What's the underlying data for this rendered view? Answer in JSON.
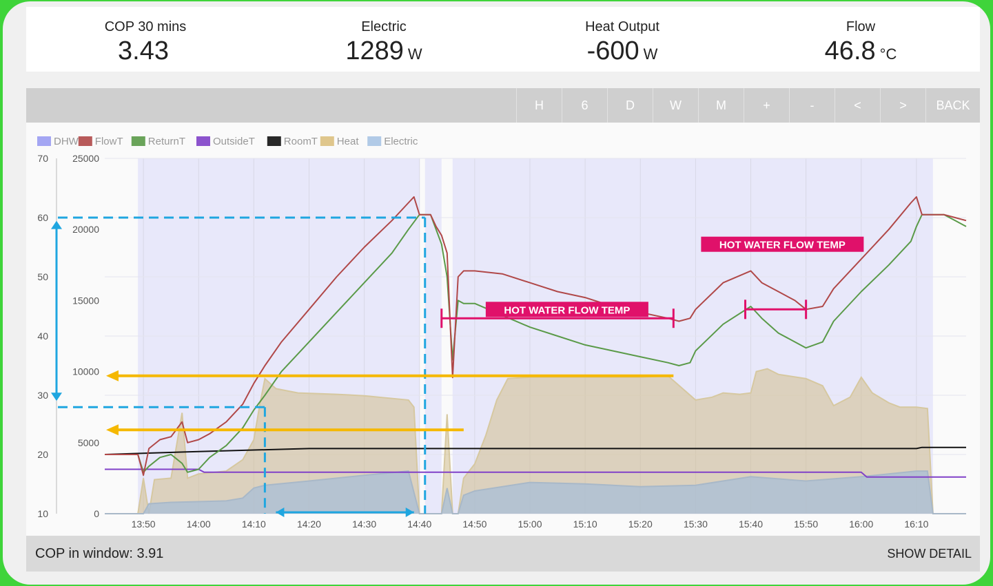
{
  "stats": [
    {
      "label": "COP 30 mins",
      "value": "3.43",
      "unit": ""
    },
    {
      "label": "Electric",
      "value": "1289",
      "unit": "W"
    },
    {
      "label": "Heat Output",
      "value": "-600",
      "unit": "W"
    },
    {
      "label": "Flow",
      "value": "46.8",
      "unit": "°C"
    }
  ],
  "toolbar": {
    "buttons": [
      "H",
      "6",
      "D",
      "W",
      "M",
      "+",
      "-",
      "<",
      ">"
    ],
    "back_label": "BACK"
  },
  "footer": {
    "cop_window": "COP in window: 3.91",
    "show_detail": "SHOW DETAIL"
  },
  "colors": {
    "DHW": "#9a9cf2",
    "FlowT": "#b04848",
    "ReturnT": "#5a9a48",
    "OutsideT": "#8040c8",
    "RoomT": "#111111",
    "Heat": "#dcc080",
    "Electric": "#a8c4e4",
    "annotation": "#e0116a",
    "guide_blue": "#1fa6e0",
    "guide_orange": "#f5b800"
  },
  "chart_data": {
    "type": "line",
    "x_ticks": [
      "13:50",
      "14:00",
      "14:10",
      "14:20",
      "14:30",
      "14:40",
      "14:50",
      "15:00",
      "15:10",
      "15:20",
      "15:30",
      "15:40",
      "15:50",
      "16:00",
      "16:10"
    ],
    "xlim": [
      "13:43",
      "16:19"
    ],
    "y_left": {
      "ylim": [
        10,
        70
      ],
      "ticks": [
        10,
        20,
        30,
        40,
        50,
        60,
        70
      ]
    },
    "y_right": {
      "ylim": [
        0,
        25000
      ],
      "ticks": [
        0,
        5000,
        10000,
        15000,
        20000,
        25000
      ]
    },
    "legend": [
      "DHW",
      "FlowT",
      "ReturnT",
      "OutsideT",
      "RoomT",
      "Heat",
      "Electric"
    ],
    "legend_position": "top-left",
    "dhw_periods": [
      [
        "13:49",
        "14:40"
      ],
      [
        "14:41",
        "14:44"
      ],
      [
        "14:46",
        "16:13"
      ]
    ],
    "series": [
      {
        "name": "FlowT",
        "axis": "left",
        "points": [
          [
            "13:43",
            20.0
          ],
          [
            "13:49",
            20.0
          ],
          [
            "13:50",
            16.5
          ],
          [
            "13:51",
            21.0
          ],
          [
            "13:53",
            22.5
          ],
          [
            "13:55",
            23.0
          ],
          [
            "13:57",
            25.5
          ],
          [
            "13:58",
            22.0
          ],
          [
            "14:00",
            22.5
          ],
          [
            "14:02",
            23.5
          ],
          [
            "14:05",
            25.5
          ],
          [
            "14:08",
            28.5
          ],
          [
            "14:10",
            32.0
          ],
          [
            "14:12",
            35.0
          ],
          [
            "14:15",
            39.0
          ],
          [
            "14:20",
            44.5
          ],
          [
            "14:25",
            50.0
          ],
          [
            "14:30",
            55.0
          ],
          [
            "14:35",
            59.5
          ],
          [
            "14:38",
            62.5
          ],
          [
            "14:39",
            63.5
          ],
          [
            "14:40",
            60.5
          ],
          [
            "14:42",
            60.5
          ],
          [
            "14:43",
            58.5
          ],
          [
            "14:44",
            57.0
          ],
          [
            "14:45",
            54.0
          ],
          [
            "14:46",
            33.0
          ],
          [
            "14:47",
            50.0
          ],
          [
            "14:48",
            51.0
          ],
          [
            "14:50",
            51.0
          ],
          [
            "14:55",
            50.5
          ],
          [
            "15:00",
            49.0
          ],
          [
            "15:05",
            47.5
          ],
          [
            "15:10",
            46.5
          ],
          [
            "15:15",
            45.0
          ],
          [
            "15:20",
            44.0
          ],
          [
            "15:25",
            43.0
          ],
          [
            "15:27",
            42.5
          ],
          [
            "15:29",
            43.0
          ],
          [
            "15:30",
            44.5
          ],
          [
            "15:35",
            49.0
          ],
          [
            "15:40",
            51.0
          ],
          [
            "15:42",
            49.0
          ],
          [
            "15:45",
            47.5
          ],
          [
            "15:48",
            46.0
          ],
          [
            "15:50",
            44.5
          ],
          [
            "15:53",
            45.0
          ],
          [
            "15:55",
            48.0
          ],
          [
            "16:00",
            53.0
          ],
          [
            "16:05",
            58.0
          ],
          [
            "16:09",
            62.5
          ],
          [
            "16:10",
            63.5
          ],
          [
            "16:11",
            60.5
          ],
          [
            "16:15",
            60.5
          ],
          [
            "16:17",
            60.0
          ],
          [
            "16:19",
            59.5
          ]
        ]
      },
      {
        "name": "ReturnT",
        "axis": "left",
        "points": [
          [
            "13:43",
            20.0
          ],
          [
            "13:49",
            20.0
          ],
          [
            "13:50",
            17.0
          ],
          [
            "13:51",
            18.0
          ],
          [
            "13:53",
            19.5
          ],
          [
            "13:55",
            20.0
          ],
          [
            "13:57",
            18.5
          ],
          [
            "13:58",
            17.0
          ],
          [
            "14:00",
            17.5
          ],
          [
            "14:02",
            19.5
          ],
          [
            "14:05",
            21.5
          ],
          [
            "14:08",
            24.5
          ],
          [
            "14:10",
            27.5
          ],
          [
            "14:12",
            30.0
          ],
          [
            "14:15",
            34.0
          ],
          [
            "14:20",
            39.0
          ],
          [
            "14:25",
            44.0
          ],
          [
            "14:30",
            49.0
          ],
          [
            "14:35",
            54.0
          ],
          [
            "14:38",
            58.0
          ],
          [
            "14:40",
            60.5
          ],
          [
            "14:42",
            60.5
          ],
          [
            "14:43",
            58.0
          ],
          [
            "14:44",
            55.5
          ],
          [
            "14:45",
            50.0
          ],
          [
            "14:46",
            36.0
          ],
          [
            "14:47",
            46.0
          ],
          [
            "14:48",
            45.5
          ],
          [
            "14:50",
            45.5
          ],
          [
            "14:55",
            43.5
          ],
          [
            "15:00",
            41.5
          ],
          [
            "15:05",
            40.0
          ],
          [
            "15:10",
            38.5
          ],
          [
            "15:15",
            37.5
          ],
          [
            "15:20",
            36.5
          ],
          [
            "15:25",
            35.5
          ],
          [
            "15:27",
            35.0
          ],
          [
            "15:29",
            35.5
          ],
          [
            "15:30",
            37.5
          ],
          [
            "15:35",
            42.0
          ],
          [
            "15:40",
            45.0
          ],
          [
            "15:42",
            43.0
          ],
          [
            "15:45",
            40.5
          ],
          [
            "15:48",
            39.0
          ],
          [
            "15:50",
            38.0
          ],
          [
            "15:53",
            39.0
          ],
          [
            "15:55",
            42.5
          ],
          [
            "16:00",
            47.5
          ],
          [
            "16:05",
            52.0
          ],
          [
            "16:09",
            56.0
          ],
          [
            "16:10",
            58.5
          ],
          [
            "16:11",
            60.5
          ],
          [
            "16:15",
            60.5
          ],
          [
            "16:17",
            59.5
          ],
          [
            "16:19",
            58.5
          ]
        ]
      },
      {
        "name": "RoomT",
        "axis": "left",
        "points": [
          [
            "13:43",
            20.0
          ],
          [
            "14:00",
            20.5
          ],
          [
            "14:20",
            21.0
          ],
          [
            "15:00",
            21.0
          ],
          [
            "16:10",
            21.0
          ],
          [
            "16:11",
            21.2
          ],
          [
            "16:19",
            21.2
          ]
        ]
      },
      {
        "name": "OutsideT",
        "axis": "left",
        "points": [
          [
            "13:43",
            17.5
          ],
          [
            "14:00",
            17.5
          ],
          [
            "14:01",
            17.0
          ],
          [
            "16:00",
            17.0
          ],
          [
            "16:01",
            16.2
          ],
          [
            "16:19",
            16.2
          ]
        ]
      },
      {
        "name": "Heat",
        "axis": "right",
        "area": true,
        "points": [
          [
            "13:43",
            0
          ],
          [
            "13:49",
            0
          ],
          [
            "13:50",
            2500
          ],
          [
            "13:51",
            0
          ],
          [
            "13:52",
            2400
          ],
          [
            "13:55",
            2500
          ],
          [
            "13:57",
            7100
          ],
          [
            "13:58",
            2500
          ],
          [
            "14:00",
            2800
          ],
          [
            "14:05",
            3000
          ],
          [
            "14:08",
            3800
          ],
          [
            "14:10",
            5200
          ],
          [
            "14:11",
            7500
          ],
          [
            "14:12",
            9500
          ],
          [
            "14:14",
            8800
          ],
          [
            "14:18",
            8500
          ],
          [
            "14:25",
            8400
          ],
          [
            "14:30",
            8300
          ],
          [
            "14:38",
            8000
          ],
          [
            "14:39",
            7500
          ],
          [
            "14:40",
            0
          ],
          [
            "14:43",
            0
          ],
          [
            "14:44",
            0
          ],
          [
            "14:45",
            7000
          ],
          [
            "14:46",
            0
          ],
          [
            "14:47",
            0
          ],
          [
            "14:48",
            2500
          ],
          [
            "14:50",
            3500
          ],
          [
            "14:52",
            5500
          ],
          [
            "14:54",
            8000
          ],
          [
            "14:56",
            9500
          ],
          [
            "15:00",
            9600
          ],
          [
            "15:10",
            9600
          ],
          [
            "15:20",
            9600
          ],
          [
            "15:25",
            9700
          ],
          [
            "15:30",
            8000
          ],
          [
            "15:33",
            8200
          ],
          [
            "15:35",
            8500
          ],
          [
            "15:38",
            8400
          ],
          [
            "15:40",
            8500
          ],
          [
            "15:41",
            10000
          ],
          [
            "15:43",
            10200
          ],
          [
            "15:45",
            9800
          ],
          [
            "15:50",
            9500
          ],
          [
            "15:53",
            9000
          ],
          [
            "15:55",
            7600
          ],
          [
            "15:58",
            8200
          ],
          [
            "16:00",
            9600
          ],
          [
            "16:02",
            8500
          ],
          [
            "16:05",
            7800
          ],
          [
            "16:07",
            7500
          ],
          [
            "16:10",
            7500
          ],
          [
            "16:12",
            7400
          ],
          [
            "16:13",
            0
          ],
          [
            "16:19",
            0
          ]
        ]
      },
      {
        "name": "Electric",
        "axis": "right",
        "area": true,
        "points": [
          [
            "13:43",
            0
          ],
          [
            "13:50",
            0
          ],
          [
            "13:51",
            700
          ],
          [
            "13:55",
            800
          ],
          [
            "14:00",
            850
          ],
          [
            "14:05",
            900
          ],
          [
            "14:08",
            1100
          ],
          [
            "14:10",
            1800
          ],
          [
            "14:12",
            2000
          ],
          [
            "14:20",
            2300
          ],
          [
            "14:30",
            2700
          ],
          [
            "14:38",
            3000
          ],
          [
            "14:40",
            0
          ],
          [
            "14:44",
            0
          ],
          [
            "14:45",
            1800
          ],
          [
            "14:46",
            0
          ],
          [
            "14:47",
            0
          ],
          [
            "14:48",
            1300
          ],
          [
            "14:50",
            1600
          ],
          [
            "15:00",
            2200
          ],
          [
            "15:10",
            2100
          ],
          [
            "15:20",
            1900
          ],
          [
            "15:30",
            2000
          ],
          [
            "15:40",
            2600
          ],
          [
            "15:50",
            2300
          ],
          [
            "16:00",
            2600
          ],
          [
            "16:10",
            3000
          ],
          [
            "16:12",
            3000
          ],
          [
            "16:13",
            0
          ],
          [
            "16:19",
            0
          ]
        ]
      }
    ],
    "annotations": [
      {
        "text": "HOT WATER FLOW TEMP",
        "box_at": [
          "14:52",
          44.5
        ],
        "bracket_from": "14:44",
        "bracket_to": "15:26",
        "y": 43.0
      },
      {
        "text": "HOT WATER FLOW TEMP",
        "box_at": [
          "15:31",
          55.5
        ],
        "bracket_from": "15:39",
        "bracket_to": "15:50",
        "y": 44.5
      }
    ]
  }
}
